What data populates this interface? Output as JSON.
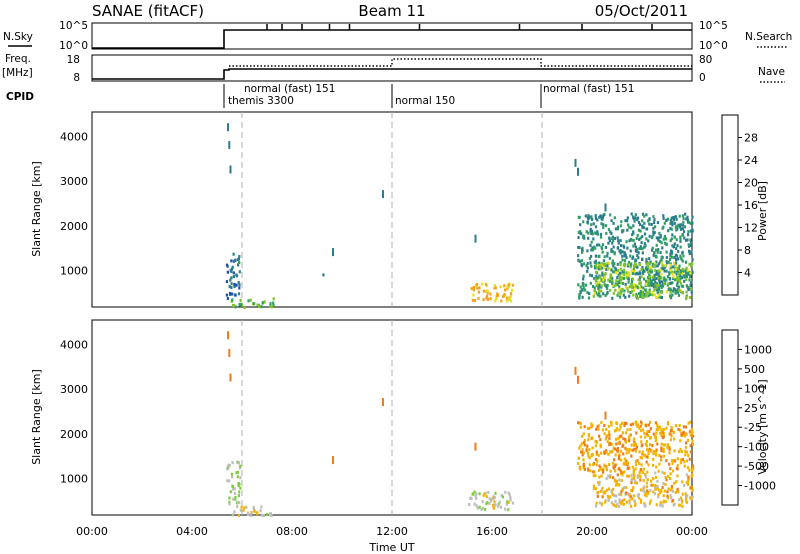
{
  "header": {
    "station": "SANAE (fitACF)",
    "beam": "Beam 11",
    "date": "05/Oct/2011"
  },
  "top_panels": {
    "nsky_label": "N.Sky",
    "nsearch_label": "N.Search",
    "nsky_ticks": [
      "10^5",
      "10^0"
    ],
    "nsearch_ticks": [
      "10^5",
      "10^0"
    ],
    "freq_label_1": "Freq.",
    "freq_label_2": "[MHz]",
    "freq_ticks": [
      "18",
      "8"
    ],
    "nave_label": "Nave",
    "nave_ticks": [
      "80",
      "0"
    ],
    "cpid_label": "CPID",
    "cpid_segments": [
      {
        "label": "themis 3300",
        "start_hour": 5.4
      },
      {
        "label": "normal (fast) 151",
        "start_hour": 6.0
      },
      {
        "label": "normal 150",
        "start_hour": 12.0
      },
      {
        "label": "normal (fast) 151",
        "start_hour": 18.0
      }
    ]
  },
  "power_panel": {
    "ylabel": "Slant Range [km]",
    "cbar_label": "Power [dB]",
    "cbar_ticks": [
      "28",
      "24",
      "20",
      "16",
      "12",
      "8",
      "4"
    ],
    "cbar_colors": [
      "#0000ff",
      "#1f4fb4",
      "#2a7d8c",
      "#2e9e63",
      "#7fc32a",
      "#e3e31a",
      "#f7a21c",
      "#f26b1c",
      "#ee2b1a"
    ]
  },
  "velocity_panel": {
    "ylabel": "Slant Range [km]",
    "cbar_label": "Velocity [m s^-1]",
    "cbar_ticks": [
      "1000",
      "500",
      "100",
      "25",
      "-25",
      "-100",
      "-500",
      "-1000"
    ],
    "cbar_colors": [
      "#2b3fb5",
      "#2e7f88",
      "#3fa84d",
      "#7ccf3a",
      "#bdbdbd",
      "#f4b400",
      "#ef7d16",
      "#ec3e12",
      "#e60000"
    ]
  },
  "xaxis": {
    "label": "Time UT",
    "ticks": [
      "00:00",
      "04:00",
      "08:00",
      "12:00",
      "16:00",
      "20:00",
      "00:00"
    ]
  },
  "chart_data": [
    {
      "type": "heatmap",
      "title": "SANAE (fitACF) Beam 11 05/Oct/2011 — Power",
      "xlabel": "Time UT",
      "ylabel": "Slant Range [km]",
      "xlim_hours": [
        0,
        24
      ],
      "ylim_km": [
        180,
        4550
      ],
      "yticks": [
        1000,
        2000,
        3000,
        4000
      ],
      "colorbar": {
        "label": "Power [dB]",
        "range": [
          0,
          32
        ]
      },
      "patches": [
        {
          "t0": 5.35,
          "t1": 5.9,
          "r0": 400,
          "r1": 1400,
          "value": 8
        },
        {
          "t0": 5.5,
          "t1": 7.3,
          "r0": 200,
          "r1": 400,
          "value": 14
        },
        {
          "t0": 9.2,
          "t1": 9.3,
          "r0": 750,
          "r1": 950,
          "value": 10
        },
        {
          "t0": 15.0,
          "t1": 16.8,
          "r0": 330,
          "r1": 730,
          "value": 22
        },
        {
          "t0": 19.4,
          "t1": 24.0,
          "r0": 400,
          "r1": 2300,
          "value": 10
        },
        {
          "t0": 20.0,
          "t1": 24.0,
          "r0": 400,
          "r1": 1200,
          "value": 16
        }
      ]
    },
    {
      "type": "heatmap",
      "title": "SANAE (fitACF) Beam 11 05/Oct/2011 — Velocity",
      "xlabel": "Time UT",
      "ylabel": "Slant Range [km]",
      "xlim_hours": [
        0,
        24
      ],
      "ylim_km": [
        180,
        4550
      ],
      "yticks": [
        1000,
        2000,
        3000,
        4000
      ],
      "colorbar": {
        "label": "Velocity [m s^-1]",
        "range": [
          -1000,
          1000
        ]
      },
      "patches": [
        {
          "t0": 5.35,
          "t1": 5.9,
          "r0": 400,
          "r1": 1400,
          "value": 100
        },
        {
          "t0": 5.5,
          "t1": 7.3,
          "r0": 200,
          "r1": 400,
          "value": -50
        },
        {
          "t0": 15.0,
          "t1": 16.8,
          "r0": 330,
          "r1": 730,
          "value": 0
        },
        {
          "t0": 19.4,
          "t1": 24.0,
          "r0": 1200,
          "r1": 2300,
          "value": -300
        },
        {
          "t0": 20.0,
          "t1": 24.0,
          "r0": 400,
          "r1": 1200,
          "value": -200
        }
      ]
    }
  ]
}
